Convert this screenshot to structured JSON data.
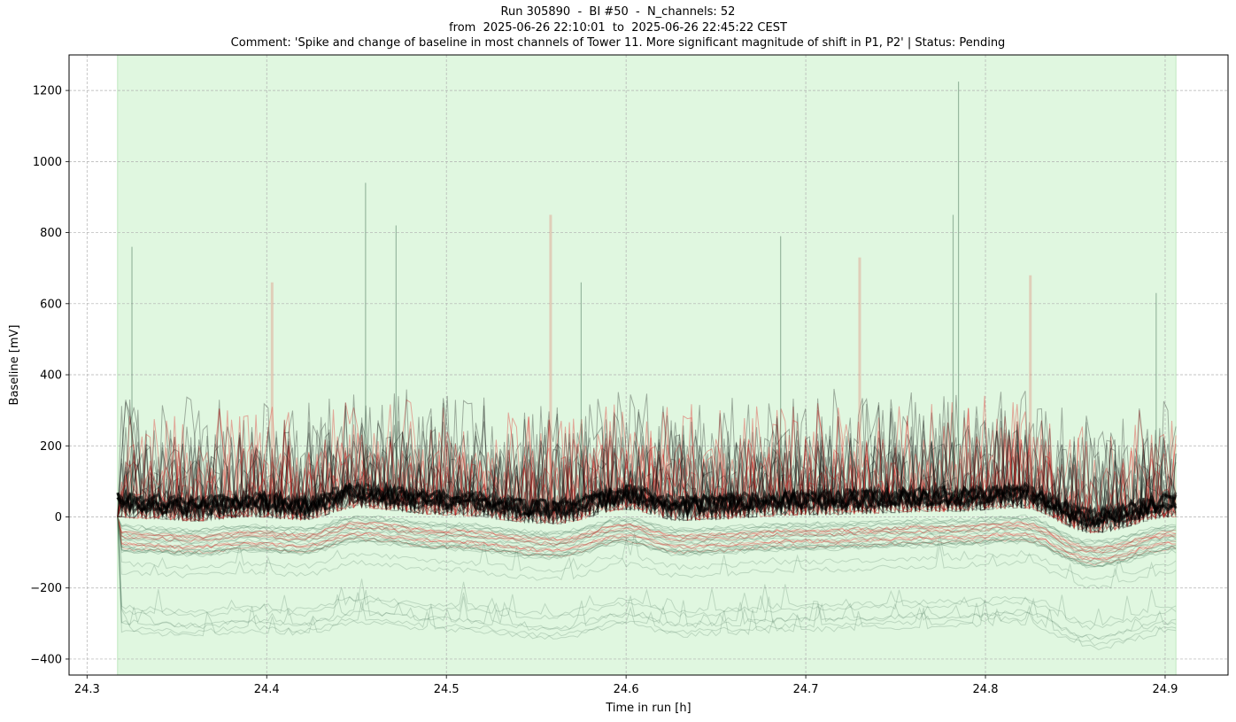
{
  "chart_data": {
    "type": "line",
    "title_lines": [
      "Run 305890  -  BI #50  -  N_channels: 52",
      "from  2025-06-26 22:10:01  to  2025-06-26 22:45:22 CEST",
      "Comment: 'Spike and change of baseline in most channels of Tower 11. More significant magnitude of shift in P1, P2' | Status: Pending"
    ],
    "xlabel": "Time in run [h]",
    "ylabel": "Baseline [mV]",
    "xlim": [
      24.29,
      24.935
    ],
    "ylim": [
      -445,
      1300
    ],
    "xticks": [
      "24.3",
      "24.4",
      "24.5",
      "24.6",
      "24.7",
      "24.8",
      "24.9"
    ],
    "yticks": [
      "−400",
      "−200",
      "0",
      "200",
      "400",
      "600",
      "800",
      "1000",
      "1200"
    ],
    "shaded_interval": [
      24.317,
      24.906
    ],
    "grid": true,
    "n_channels": 52,
    "series_colors": [
      "#000000",
      "#e01010",
      "#3d6b4f",
      "#e08070"
    ],
    "shade_color": "#e0f7e0",
    "baseline_trend": [
      {
        "x": 24.317,
        "y": 0
      },
      {
        "x": 24.33,
        "y": -5
      },
      {
        "x": 24.36,
        "y": -12
      },
      {
        "x": 24.39,
        "y": 0
      },
      {
        "x": 24.42,
        "y": -8
      },
      {
        "x": 24.45,
        "y": 25
      },
      {
        "x": 24.5,
        "y": 5
      },
      {
        "x": 24.56,
        "y": -20
      },
      {
        "x": 24.6,
        "y": 20
      },
      {
        "x": 24.63,
        "y": -10
      },
      {
        "x": 24.7,
        "y": 5
      },
      {
        "x": 24.78,
        "y": 15
      },
      {
        "x": 24.82,
        "y": 25
      },
      {
        "x": 24.86,
        "y": -45
      },
      {
        "x": 24.906,
        "y": 0
      }
    ],
    "peaks": [
      {
        "x": 24.325,
        "y": 760
      },
      {
        "x": 24.403,
        "y": 660
      },
      {
        "x": 24.455,
        "y": 940
      },
      {
        "x": 24.472,
        "y": 820
      },
      {
        "x": 24.558,
        "y": 850
      },
      {
        "x": 24.575,
        "y": 660
      },
      {
        "x": 24.686,
        "y": 790
      },
      {
        "x": 24.73,
        "y": 730
      },
      {
        "x": 24.782,
        "y": 850
      },
      {
        "x": 24.785,
        "y": 1225
      },
      {
        "x": 24.825,
        "y": 680
      },
      {
        "x": 24.895,
        "y": 630
      }
    ],
    "low_traces_min": -340
  }
}
